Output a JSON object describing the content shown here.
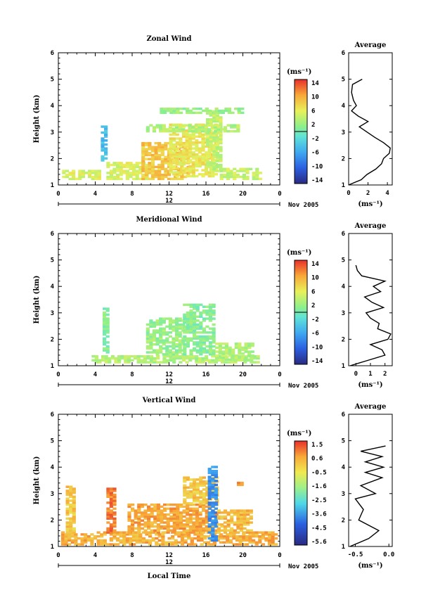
{
  "figure": {
    "date_label": "Nov 2005",
    "xlabel": "Local Time",
    "unit_label": "(ms⁻¹)",
    "avg_title": "Average",
    "day_label": "12",
    "x_ticks": [
      "0",
      "4",
      "8",
      "12",
      "16",
      "20",
      "0"
    ],
    "y_ticks": [
      "1",
      "2",
      "3",
      "4",
      "5",
      "6"
    ],
    "ylabel": "Height (km)"
  },
  "chart_data": [
    {
      "type": "heatmap",
      "id": "zonal",
      "title": "Zonal Wind",
      "ylabel": "Height (km)",
      "xlim": [
        0,
        24
      ],
      "ylim": [
        1,
        6
      ],
      "colorbar_ticks": [
        "14",
        "10",
        "6",
        "2",
        "-2",
        "-6",
        "-10",
        "-14"
      ],
      "colorbar_range": [
        -14,
        14
      ],
      "regions": [
        {
          "t0": 0.4,
          "t1": 4.6,
          "h0": 1.2,
          "h1": 1.5,
          "v": 5
        },
        {
          "t0": 4.6,
          "t1": 5.2,
          "h0": 1.9,
          "h1": 3.2,
          "v": -4
        },
        {
          "t0": 5.2,
          "t1": 9.5,
          "h0": 1.2,
          "h1": 1.8,
          "v": 5
        },
        {
          "t0": 9.0,
          "t1": 14.0,
          "h0": 1.2,
          "h1": 2.6,
          "v": 8
        },
        {
          "t0": 12.0,
          "t1": 17.0,
          "h0": 1.3,
          "h1": 3.3,
          "v": 6
        },
        {
          "t0": 16.0,
          "t1": 17.5,
          "h0": 1.5,
          "h1": 3.8,
          "v": 4
        },
        {
          "t0": 17.5,
          "t1": 22.0,
          "h0": 1.2,
          "h1": 1.6,
          "v": 4
        },
        {
          "t0": 9.5,
          "t1": 19.5,
          "h0": 3.0,
          "h1": 3.3,
          "v": 3
        },
        {
          "t0": 11.0,
          "t1": 20.0,
          "h0": 3.7,
          "h1": 3.9,
          "v": 2
        }
      ],
      "avg_profile": {
        "xlim": [
          0,
          4.5
        ],
        "x_ticks": [
          "0",
          "2",
          "4"
        ],
        "height": [
          1.0,
          1.2,
          1.4,
          1.6,
          1.8,
          2.0,
          2.2,
          2.4,
          2.6,
          2.8,
          3.0,
          3.2,
          3.4,
          3.6,
          3.8,
          4.0,
          4.2,
          4.5,
          4.8,
          5.0
        ],
        "value": [
          0.0,
          1.3,
          1.9,
          2.8,
          3.4,
          3.6,
          4.2,
          4.3,
          3.6,
          2.7,
          1.9,
          1.1,
          2.0,
          1.0,
          0.3,
          0.8,
          0.5,
          0.3,
          0.4,
          1.4
        ]
      }
    },
    {
      "type": "heatmap",
      "id": "meridional",
      "title": "Meridional Wind",
      "ylabel": "Height (km)",
      "xlim": [
        0,
        24
      ],
      "ylim": [
        1,
        6
      ],
      "colorbar_ticks": [
        "14",
        "10",
        "6",
        "2",
        "-2",
        "-6",
        "-10",
        "-14"
      ],
      "colorbar_range": [
        -14,
        14
      ],
      "regions": [
        {
          "t0": 3.6,
          "t1": 21.5,
          "h0": 1.1,
          "h1": 1.4,
          "v": 3
        },
        {
          "t0": 4.8,
          "t1": 5.3,
          "h0": 1.4,
          "h1": 3.2,
          "v": 1
        },
        {
          "t0": 9.5,
          "t1": 13.5,
          "h0": 1.4,
          "h1": 2.8,
          "v": 2
        },
        {
          "t0": 13.5,
          "t1": 17.0,
          "h0": 1.4,
          "h1": 3.3,
          "v": 1
        },
        {
          "t0": 17.0,
          "t1": 21.0,
          "h0": 1.2,
          "h1": 1.8,
          "v": 3
        }
      ],
      "avg_profile": {
        "xlim": [
          -0.5,
          2.5
        ],
        "x_ticks": [
          "0",
          "1",
          "2"
        ],
        "height": [
          1.0,
          1.2,
          1.4,
          1.6,
          1.8,
          2.0,
          2.2,
          2.4,
          2.6,
          2.8,
          3.0,
          3.2,
          3.4,
          3.6,
          3.8,
          4.0,
          4.2,
          4.4,
          4.6,
          4.8
        ],
        "value": [
          -0.4,
          0.8,
          2.0,
          1.8,
          1.0,
          2.2,
          2.4,
          1.5,
          1.6,
          1.0,
          0.7,
          1.9,
          1.1,
          0.6,
          1.7,
          1.2,
          2.0,
          0.4,
          0.1,
          0.0
        ]
      }
    },
    {
      "type": "heatmap",
      "id": "vertical",
      "title": "Vertical Wind",
      "ylabel": "Height (km)",
      "xlabel": "Local Time",
      "xlim": [
        0,
        24
      ],
      "ylim": [
        1,
        6
      ],
      "colorbar_ticks": [
        "1.5",
        "0.6",
        "-0.5",
        "-1.6",
        "-2.5",
        "-3.6",
        "-4.5",
        "-5.6"
      ],
      "colorbar_range": [
        -5.6,
        1.5
      ],
      "regions": [
        {
          "t0": 0.3,
          "t1": 23.5,
          "h0": 1.05,
          "h1": 1.5,
          "v": 0.3
        },
        {
          "t0": 0.8,
          "t1": 1.6,
          "h0": 1.5,
          "h1": 3.3,
          "v": 0.0
        },
        {
          "t0": 5.2,
          "t1": 6.0,
          "h0": 1.5,
          "h1": 3.2,
          "v": 0.8
        },
        {
          "t0": 7.5,
          "t1": 17.0,
          "h0": 1.5,
          "h1": 2.6,
          "v": 0.4
        },
        {
          "t0": 13.5,
          "t1": 17.2,
          "h0": 2.6,
          "h1": 3.6,
          "v": 0.0
        },
        {
          "t0": 16.2,
          "t1": 17.2,
          "h0": 1.2,
          "h1": 4.0,
          "v": -3.8
        },
        {
          "t0": 17.2,
          "t1": 21.0,
          "h0": 1.5,
          "h1": 2.4,
          "v": 0.2
        },
        {
          "t0": 19.0,
          "t1": 20.0,
          "h0": 3.3,
          "h1": 3.45,
          "v": 0.6
        }
      ],
      "avg_profile": {
        "xlim": [
          -0.6,
          0.05
        ],
        "x_ticks": [
          "-0.5",
          "0.0"
        ],
        "height": [
          1.0,
          1.3,
          1.6,
          2.0,
          2.4,
          2.8,
          3.0,
          3.3,
          3.6,
          3.8,
          4.0,
          4.2,
          4.4,
          4.6,
          4.8
        ],
        "value": [
          -0.58,
          -0.3,
          -0.15,
          -0.45,
          -0.38,
          -0.5,
          -0.2,
          -0.42,
          -0.1,
          -0.35,
          -0.08,
          -0.35,
          -0.1,
          -0.42,
          -0.05
        ]
      }
    }
  ]
}
